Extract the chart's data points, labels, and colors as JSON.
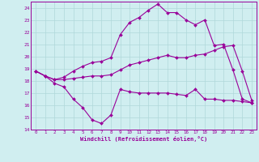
{
  "xlabel": "Windchill (Refroidissement éolien,°C)",
  "x_ticks": [
    0,
    1,
    2,
    3,
    4,
    5,
    6,
    7,
    8,
    9,
    10,
    11,
    12,
    13,
    14,
    15,
    16,
    17,
    18,
    19,
    20,
    21,
    22,
    23
  ],
  "ylim": [
    14,
    24.5
  ],
  "yticks": [
    14,
    15,
    16,
    17,
    18,
    19,
    20,
    21,
    22,
    23,
    24
  ],
  "xlim": [
    -0.5,
    23.5
  ],
  "bg_color": "#d0eef0",
  "grid_color": "#b0d8da",
  "line_color": "#990099",
  "line1_x": [
    0,
    1,
    2,
    3,
    4,
    5,
    6,
    7,
    8,
    9,
    10,
    11,
    12,
    13,
    14,
    15,
    16,
    17,
    18,
    19,
    20,
    21,
    22,
    23
  ],
  "line1_y": [
    18.8,
    18.4,
    17.8,
    17.5,
    16.5,
    15.8,
    14.8,
    14.5,
    15.2,
    17.3,
    17.1,
    17.0,
    17.0,
    17.0,
    17.0,
    16.9,
    16.8,
    17.3,
    16.5,
    16.5,
    16.4,
    16.4,
    16.3,
    16.2
  ],
  "line2_x": [
    0,
    1,
    2,
    3,
    4,
    5,
    6,
    7,
    8,
    9,
    10,
    11,
    12,
    13,
    14,
    15,
    16,
    17,
    18,
    19,
    20,
    21,
    22,
    23
  ],
  "line2_y": [
    18.8,
    18.4,
    18.1,
    18.1,
    18.2,
    18.3,
    18.4,
    18.4,
    18.5,
    18.9,
    19.3,
    19.5,
    19.7,
    19.9,
    20.1,
    19.9,
    19.9,
    20.1,
    20.2,
    20.5,
    20.8,
    20.9,
    18.8,
    16.4
  ],
  "line3_x": [
    0,
    1,
    2,
    3,
    4,
    5,
    6,
    7,
    8,
    9,
    10,
    11,
    12,
    13,
    14,
    15,
    16,
    17,
    18,
    19,
    20,
    21,
    22,
    23
  ],
  "line3_y": [
    18.8,
    18.4,
    18.1,
    18.3,
    18.8,
    19.2,
    19.5,
    19.6,
    19.9,
    21.8,
    22.8,
    23.2,
    23.8,
    24.3,
    23.6,
    23.6,
    23.0,
    22.6,
    23.0,
    20.9,
    21.0,
    18.9,
    16.5,
    16.2
  ]
}
